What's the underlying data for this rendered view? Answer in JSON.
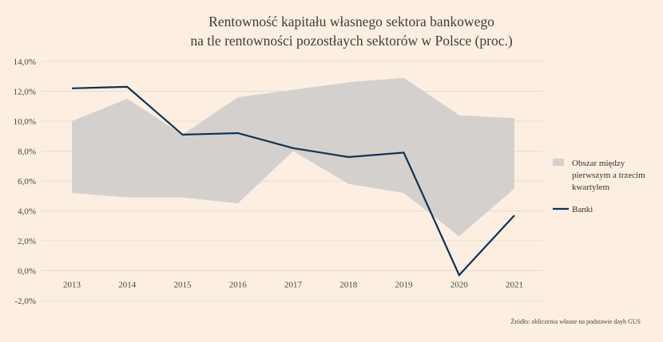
{
  "chart_data": {
    "type": "area",
    "title": [
      "Rentowność kapitału własnego sektora bankowego",
      "na tle rentowności pozostłaych sektorów w Polsce (proc.)"
    ],
    "x": [
      "2013",
      "2014",
      "2015",
      "2016",
      "2017",
      "2018",
      "2019",
      "2020",
      "2021"
    ],
    "ylim": [
      -2.0,
      14.0
    ],
    "yticks": [
      "-2,0%",
      "0,0%",
      "2,0%",
      "4,0%",
      "6,0%",
      "8,0%",
      "10,0%",
      "12,0%",
      "14,0%"
    ],
    "ytick_values": [
      -2,
      0,
      2,
      4,
      6,
      8,
      10,
      12,
      14
    ],
    "grid": true,
    "legend_position": "right",
    "band": {
      "name": "Obszar między pierwszym a trzecim kwartylem",
      "legend_lines": [
        "Obszar między",
        "pierwszym a trzecim",
        "kwartylem"
      ],
      "color": "#d4d0ce",
      "q1": [
        5.2,
        4.9,
        4.9,
        4.5,
        8.0,
        5.8,
        5.2,
        2.3,
        5.5
      ],
      "q3": [
        10.0,
        11.5,
        9.1,
        11.6,
        12.1,
        12.6,
        12.9,
        10.4,
        10.2
      ]
    },
    "series": [
      {
        "name": "Banki",
        "color": "#0f3352",
        "values": [
          12.2,
          12.3,
          9.1,
          9.2,
          8.2,
          7.6,
          7.9,
          -0.3,
          3.7
        ]
      }
    ]
  },
  "source": "Źródło: obliczenia własne na podstawie dayh GUS"
}
